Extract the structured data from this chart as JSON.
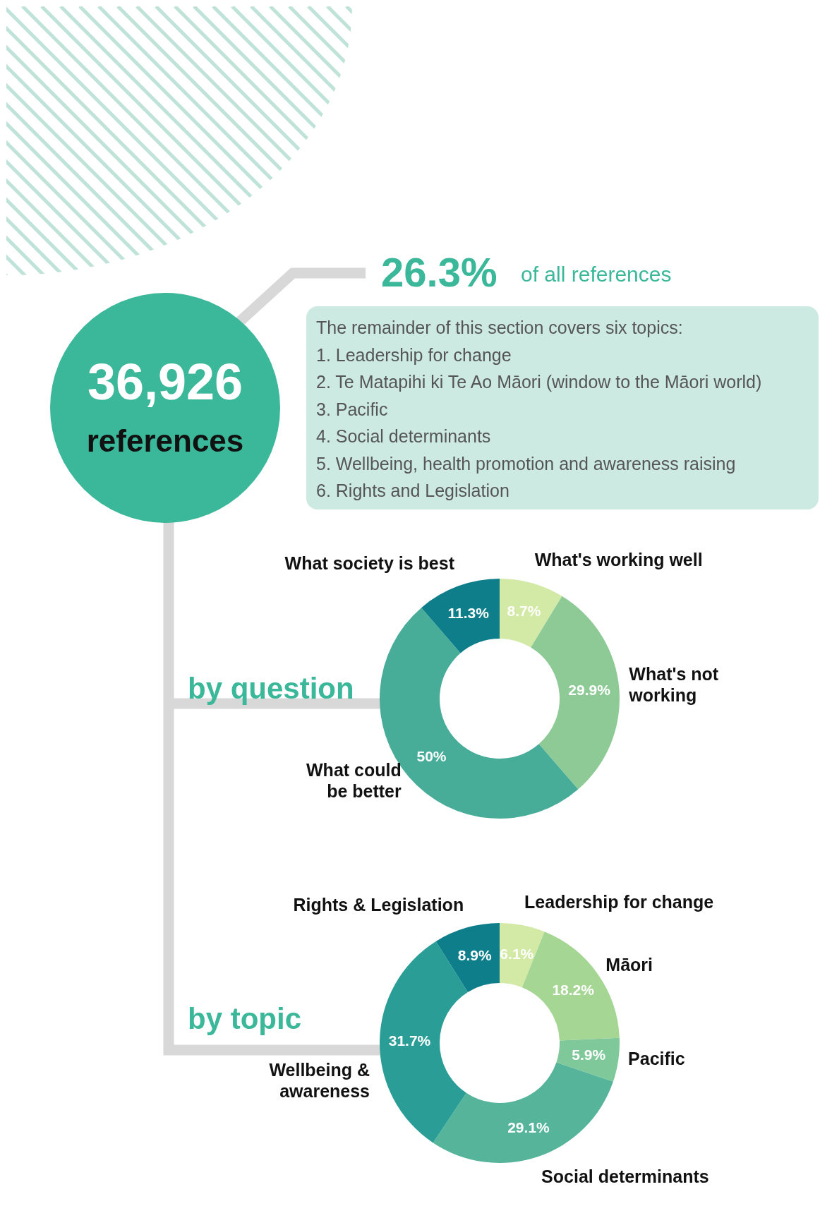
{
  "chart_data": [
    {
      "type": "other",
      "title": "36,926",
      "subtitle": "references",
      "annotations": [
        "26.3%",
        "of all references",
        "The remainder of this section covers six topics:",
        "1. Leadership for change",
        "2. Te Matapihi ki Te Ao Māori (window to the Māori world)",
        "3. Pacific",
        "4. Social determinants",
        "5. Wellbeing, health promotion and awareness raising",
        "6. Rights and Legislation"
      ]
    },
    {
      "type": "donut",
      "title": "by question",
      "categories": [
        "What's working well",
        "What's not working",
        "What could be better",
        "What society is best"
      ],
      "values": [
        8.7,
        29.9,
        50,
        11.3
      ],
      "colors": [
        "#d3e9a6",
        "#8dca95",
        "#47ac98",
        "#0f7e8b"
      ],
      "value_labels": [
        "8.7%",
        "29.9%",
        "50%",
        "11.3%"
      ],
      "legend": false
    },
    {
      "type": "donut",
      "title": "by topic",
      "categories": [
        "Leadership for change",
        "Māori",
        "Pacific",
        "Social determinants",
        "Wellbeing & awareness",
        "Rights & Legislation"
      ],
      "values": [
        6.1,
        18.2,
        5.9,
        29.1,
        31.7,
        8.9
      ],
      "colors": [
        "#d3e9a6",
        "#a6d693",
        "#7fc89a",
        "#55b49a",
        "#2a9e96",
        "#0f7e8b"
      ],
      "value_labels": [
        "6.1%",
        "18.2%",
        "5.9%",
        "29.1%",
        "31.7%",
        "8.9%"
      ],
      "legend": false
    }
  ]
}
